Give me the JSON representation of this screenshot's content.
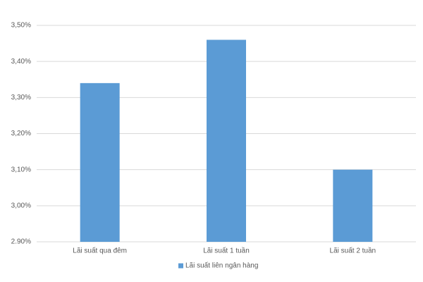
{
  "chart_data": {
    "type": "bar",
    "categories": [
      "Lãi suất qua đêm",
      "Lãi suất 1 tuần",
      "Lãi suất 2 tuần"
    ],
    "series": [
      {
        "name": "Lãi suất liên ngân hàng",
        "color": "#5b9bd5",
        "values": [
          3.34,
          3.46,
          3.1
        ]
      }
    ],
    "ylim": [
      2.9,
      3.5
    ],
    "yticks": [
      {
        "value": 2.9,
        "label": "2.90%"
      },
      {
        "value": 3.0,
        "label": "3,00%"
      },
      {
        "value": 3.1,
        "label": "3,10%"
      },
      {
        "value": 3.2,
        "label": "3,20%"
      },
      {
        "value": 3.3,
        "label": "3,30%"
      },
      {
        "value": 3.4,
        "label": "3,40%"
      },
      {
        "value": 3.5,
        "label": "3,50%"
      }
    ],
    "grid": true,
    "legend": "bottom"
  }
}
